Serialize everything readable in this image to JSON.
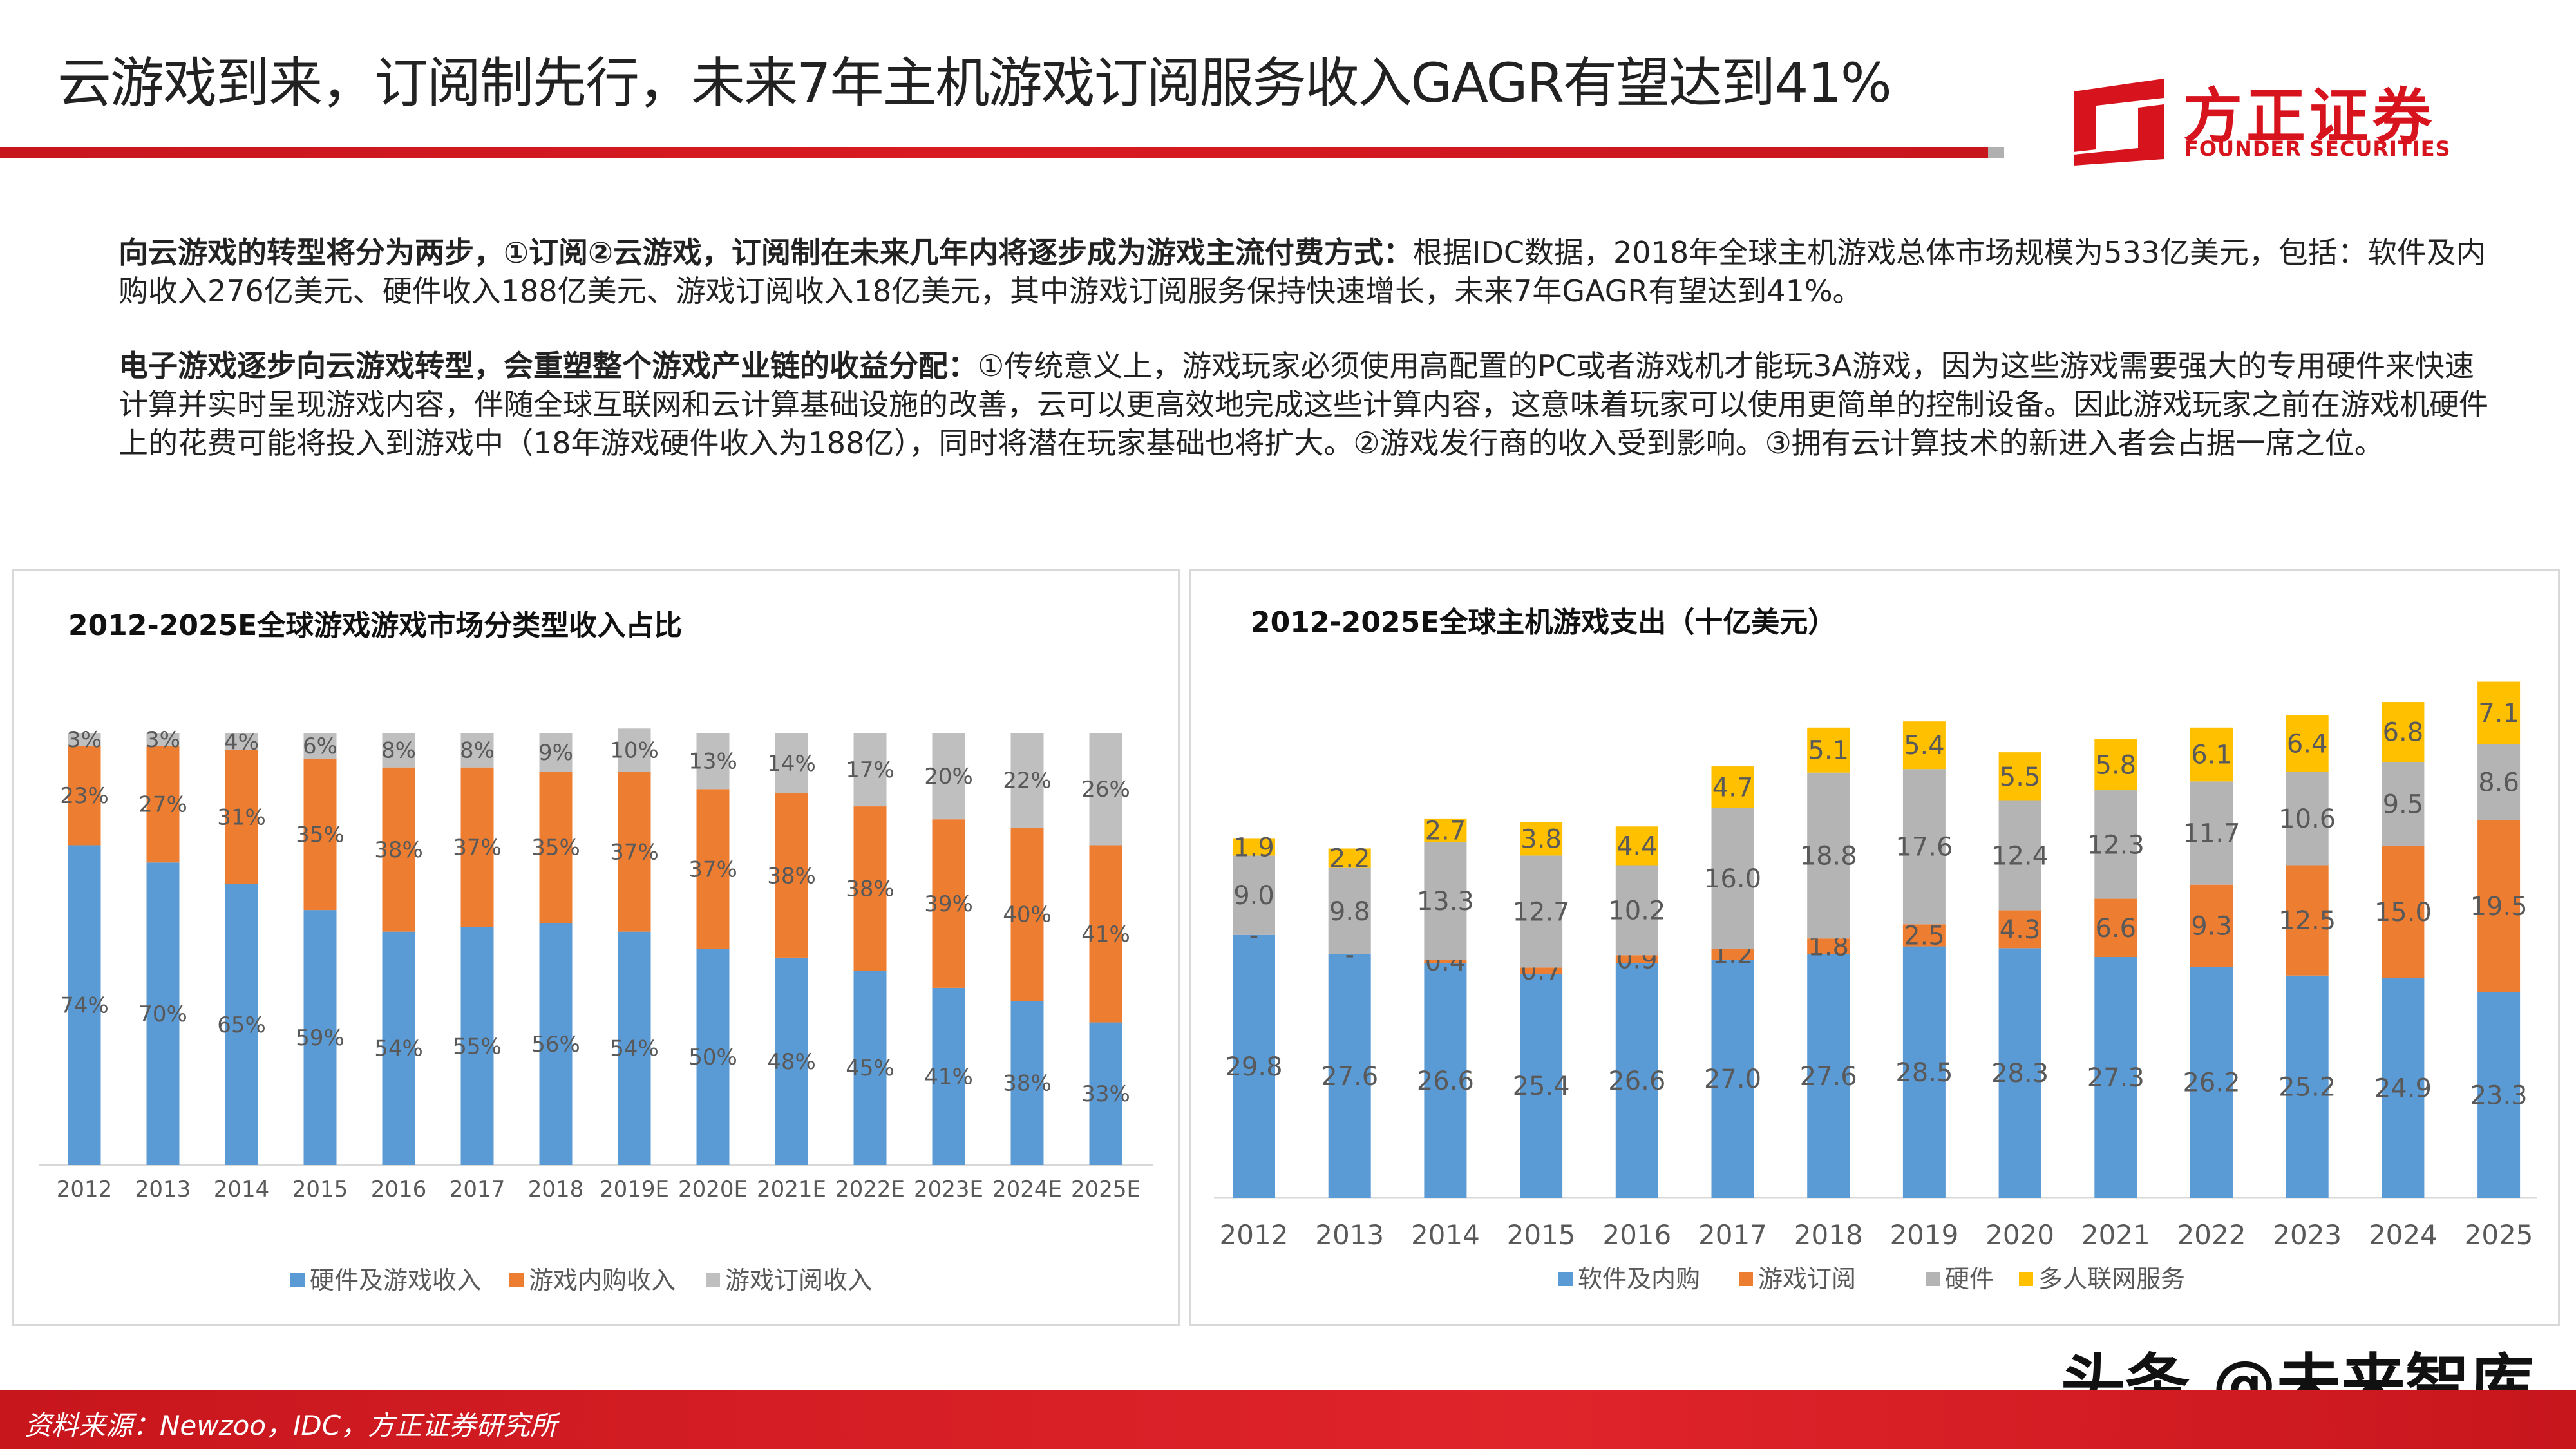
{
  "header": {
    "title": "云游戏到来，订阅制先行，未来7年主机游戏订阅服务收入GAGR有望达到41%",
    "logo_cn": "方正证券",
    "logo_en": "FOUNDER SECURITIES",
    "brand_color": "#D7141E"
  },
  "body": {
    "p1_bold": "向云游戏的转型将分为两步，①订阅②云游戏，订阅制在未来几年内将逐步成为游戏主流付费方式：",
    "p1_text": "根据IDC数据，2018年全球主机游戏总体市场规模为533亿美元，包括：软件及内购收入276亿美元、硬件收入188亿美元、游戏订阅收入18亿美元，其中游戏订阅服务保持快速增长，未来7年GAGR有望达到41%。",
    "p2_bold": "电子游戏逐步向云游戏转型，会重塑整个游戏产业链的收益分配：",
    "p2_text": "①传统意义上，游戏玩家必须使用高配置的PC或者游戏机才能玩3A游戏，因为这些游戏需要强大的专用硬件来快速计算并实时呈现游戏内容，伴随全球互联网和云计算基础设施的改善，云可以更高效地完成这些计算内容，这意味着玩家可以使用更简单的控制设备。因此游戏玩家之前在游戏机硬件上的花费可能将投入到游戏中（18年游戏硬件收入为188亿），同时将潜在玩家基础也将扩大。②游戏发行商的收入受到影响。③拥有云计算技术的新进入者会占据一席之位。"
  },
  "chart_data": [
    {
      "type": "bar",
      "stacked": true,
      "title": "2012-2025E全球游戏游戏市场分类型收入占比",
      "categories": [
        "2012",
        "2013",
        "2014",
        "2015",
        "2016",
        "2017",
        "2018",
        "2019E",
        "2020E",
        "2021E",
        "2022E",
        "2023E",
        "2024E",
        "2025E"
      ],
      "unit": "%",
      "ylim": [
        0,
        100
      ],
      "grid": false,
      "legend": "bottom",
      "series": [
        {
          "name": "硬件及游戏收入",
          "color": "#5B9BD5",
          "values": [
            74,
            70,
            65,
            59,
            54,
            55,
            56,
            54,
            50,
            48,
            45,
            41,
            38,
            33
          ]
        },
        {
          "name": "游戏内购收入",
          "color": "#ED7D31",
          "values": [
            23,
            27,
            31,
            35,
            38,
            37,
            35,
            37,
            37,
            38,
            38,
            39,
            40,
            41
          ]
        },
        {
          "name": "游戏订阅收入",
          "color": "#BFBFBF",
          "values": [
            3,
            3,
            4,
            6,
            8,
            8,
            9,
            10,
            13,
            14,
            17,
            20,
            22,
            26
          ]
        }
      ]
    },
    {
      "type": "bar",
      "stacked": true,
      "title": "2012-2025E全球主机游戏支出（十亿美元）",
      "categories": [
        "2012",
        "2013",
        "2014",
        "2015",
        "2016",
        "2017",
        "2018",
        "2019",
        "2020",
        "2021",
        "2022",
        "2023",
        "2024",
        "2025"
      ],
      "ylim": [
        0,
        60
      ],
      "grid": false,
      "legend": "bottom",
      "zero_label": "-",
      "series": [
        {
          "name": "软件及内购",
          "color": "#5B9BD5",
          "values": [
            29.8,
            27.6,
            26.6,
            25.4,
            26.6,
            27.0,
            27.6,
            28.5,
            28.3,
            27.3,
            26.2,
            25.2,
            24.9,
            23.3
          ]
        },
        {
          "name": "游戏订阅",
          "color": "#ED7D31",
          "values": [
            0,
            0,
            0.4,
            0.7,
            0.9,
            1.2,
            1.8,
            2.5,
            4.3,
            6.6,
            9.3,
            12.5,
            15.0,
            19.5
          ]
        },
        {
          "name": "硬件",
          "color": "#B4B4B4",
          "values": [
            9.0,
            9.8,
            13.3,
            12.7,
            10.2,
            16.0,
            18.8,
            17.6,
            12.4,
            12.3,
            11.7,
            10.6,
            9.5,
            8.6
          ]
        },
        {
          "name": "多人联网服务",
          "color": "#FFC000",
          "values": [
            1.9,
            2.2,
            2.7,
            3.8,
            4.4,
            4.7,
            5.1,
            5.4,
            5.5,
            5.8,
            6.1,
            6.4,
            6.8,
            7.1
          ]
        }
      ]
    }
  ],
  "footer": {
    "source": "资料来源：Newzoo，IDC，方正证券研究所",
    "watermark": "头条 @未来智库"
  }
}
